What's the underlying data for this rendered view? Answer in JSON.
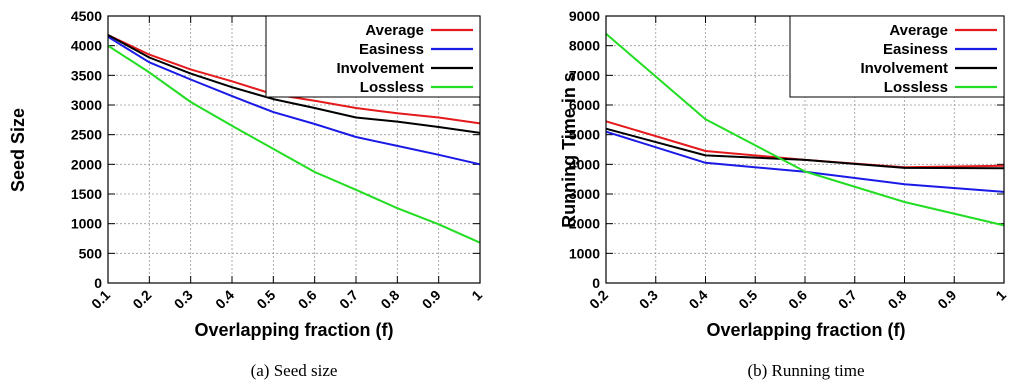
{
  "chart_data": [
    {
      "type": "line",
      "caption": "(a)  Seed size",
      "xlabel": "Overlapping fraction (f)",
      "ylabel": "Seed Size",
      "x": [
        0.1,
        0.2,
        0.3,
        0.4,
        0.5,
        0.6,
        0.7,
        0.8,
        0.9,
        1
      ],
      "x_tick_labels": [
        "0.1",
        "0.2",
        "0.3",
        "0.4",
        "0.5",
        "0.6",
        "0.7",
        "0.8",
        "0.9",
        "1"
      ],
      "xlim": [
        0.1,
        1
      ],
      "ylim": [
        0,
        4500
      ],
      "y_ticks": [
        0,
        500,
        1000,
        1500,
        2000,
        2500,
        3000,
        3500,
        4000,
        4500
      ],
      "grid": true,
      "legend_position": "top-right",
      "series": [
        {
          "name": "Average",
          "color": "#e41a1c",
          "values": [
            4180,
            3850,
            3600,
            3400,
            3180,
            3070,
            2950,
            2860,
            2790,
            2690
          ]
        },
        {
          "name": "Easiness",
          "color": "#1a1ae6",
          "values": [
            4150,
            3720,
            3430,
            3150,
            2880,
            2680,
            2460,
            2310,
            2160,
            2000
          ]
        },
        {
          "name": "Involvement",
          "color": "#000000",
          "values": [
            4180,
            3800,
            3530,
            3300,
            3100,
            2950,
            2790,
            2720,
            2630,
            2530
          ]
        },
        {
          "name": "Lossless",
          "color": "#22dd22",
          "values": [
            4000,
            3550,
            3050,
            2650,
            2260,
            1870,
            1570,
            1260,
            990,
            680
          ]
        }
      ]
    },
    {
      "type": "line",
      "caption": "(b)  Running time",
      "xlabel": "Overlapping fraction (f)",
      "ylabel": "Running Time in s",
      "x": [
        0.2,
        0.4,
        0.6,
        0.8,
        1
      ],
      "x_ticks": [
        0.2,
        0.3,
        0.4,
        0.5,
        0.6,
        0.7,
        0.8,
        0.9,
        1
      ],
      "x_tick_labels": [
        "0.2",
        "0.3",
        "0.4",
        "0.5",
        "0.6",
        "0.7",
        "0.8",
        "0.9",
        "1"
      ],
      "xlim": [
        0.2,
        1
      ],
      "ylim": [
        0,
        9000
      ],
      "y_ticks": [
        0,
        1000,
        2000,
        3000,
        4000,
        5000,
        6000,
        7000,
        8000,
        9000
      ],
      "grid": true,
      "legend_position": "top-right",
      "series": [
        {
          "name": "Average",
          "color": "#e41a1c",
          "values": [
            5450,
            4450,
            4150,
            3900,
            3950
          ]
        },
        {
          "name": "Easiness",
          "color": "#1a1ae6",
          "values": [
            5100,
            4050,
            3750,
            3330,
            3070
          ]
        },
        {
          "name": "Involvement",
          "color": "#000000",
          "values": [
            5200,
            4300,
            4150,
            3880,
            3870
          ]
        },
        {
          "name": "Lossless",
          "color": "#22dd22",
          "values": [
            8400,
            5520,
            3760,
            2730,
            1940
          ]
        }
      ]
    }
  ]
}
